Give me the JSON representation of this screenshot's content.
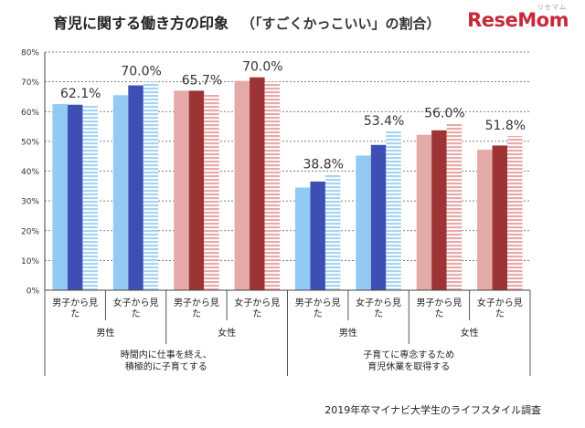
{
  "title": "育児に関する働き方の印象",
  "subtitle": "（「すごくかっこいい」の割合）",
  "logo": "ReseMom",
  "logo_ruby": "リセマム",
  "source": "2019年卒マイナビ大学生のライフスタイル調査",
  "colors": {
    "light_blue": "#92caf4",
    "dark_blue": "#3e4fb3",
    "striped_blue": "#a8d4f3",
    "light_red": "#e4a9a9",
    "dark_red": "#9c3436",
    "striped_red": "#e8aaa8"
  },
  "chart_data": {
    "type": "bar",
    "ylim": [
      0,
      80
    ],
    "yticks": [
      "0%",
      "10%",
      "20%",
      "30%",
      "40%",
      "50%",
      "60%",
      "70%",
      "80%"
    ],
    "groups": [
      {
        "label": "男子から見た",
        "bars": [
          62.5,
          62.3,
          62.1
        ],
        "value_label": "62.1%",
        "palette": "blue"
      },
      {
        "label": "女子から見た",
        "bars": [
          65.5,
          68.8,
          70.0
        ],
        "value_label": "70.0%",
        "palette": "blue"
      },
      {
        "label": "男子から見た",
        "bars": [
          67.0,
          67.0,
          65.7
        ],
        "value_label": "65.7%",
        "palette": "red"
      },
      {
        "label": "女子から見た",
        "bars": [
          70.3,
          71.5,
          70.0
        ],
        "value_label": "70.0%",
        "palette": "red"
      },
      {
        "label": "男子から見た",
        "bars": [
          34.5,
          36.5,
          38.8
        ],
        "value_label": "38.8%",
        "palette": "blue"
      },
      {
        "label": "女子から見た",
        "bars": [
          45.2,
          48.8,
          53.4
        ],
        "value_label": "53.4%",
        "palette": "blue"
      },
      {
        "label": "男子から見た",
        "bars": [
          52.2,
          53.7,
          56.0
        ],
        "value_label": "56.0%",
        "palette": "red"
      },
      {
        "label": "女子から見た",
        "bars": [
          47.2,
          48.6,
          51.8
        ],
        "value_label": "51.8%",
        "palette": "red"
      }
    ],
    "gender_labels": [
      "男性",
      "女性",
      "男性",
      "女性"
    ],
    "categories": [
      "時間内に仕事を終え、積極的に子育てする",
      "子育てに専念するため育児休業を取得する"
    ]
  }
}
